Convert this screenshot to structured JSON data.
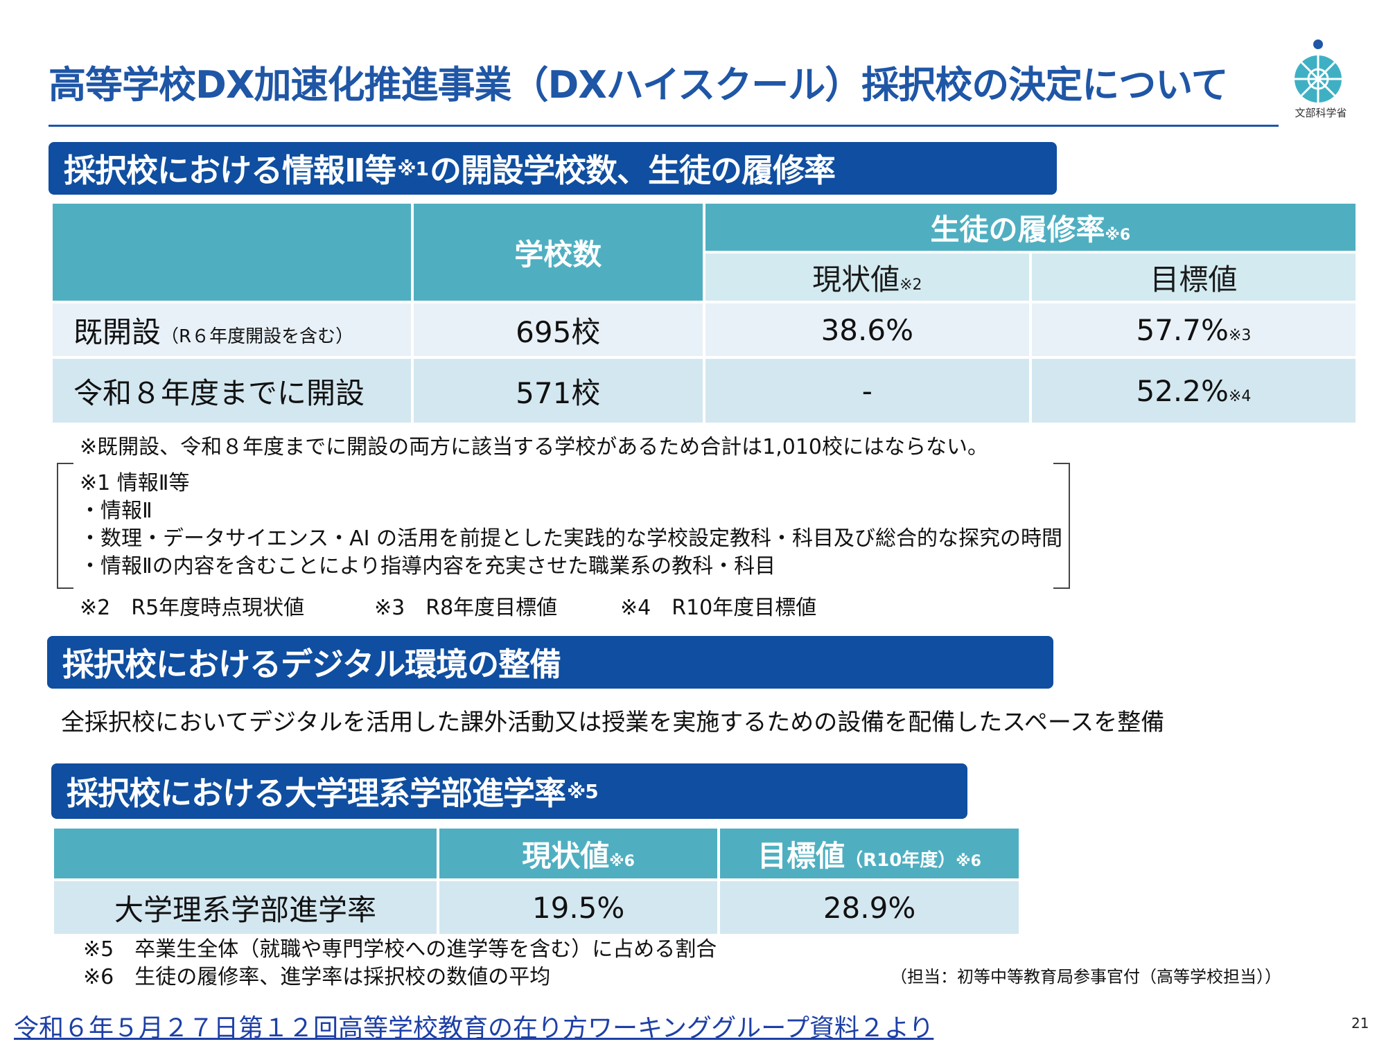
{
  "title": "高等学校DX加速化推進事業（DXハイスクール）採択校の決定について",
  "logo": {
    "text": "文部科学省",
    "color": "#3fb0c4"
  },
  "section1": {
    "heading_main": "採択校における情報Ⅱ等",
    "heading_note": "※1",
    "heading_rest": "の開設学校数、生徒の履修率",
    "table": {
      "col_schools": "学校数",
      "col_rate": "生徒の履修率",
      "col_rate_note": "※6",
      "col_current": "現状値",
      "col_current_note": "※2",
      "col_target": "目標値",
      "rows": [
        {
          "label": "既開設",
          "label_paren": "（R６年度開設を含む）",
          "schools": "695校",
          "current": "38.6%",
          "target": "57.7%",
          "target_note": "※3"
        },
        {
          "label": "令和８年度までに開設",
          "label_paren": "",
          "schools": "571校",
          "current": "-",
          "target": "52.2%",
          "target_note": "※4"
        }
      ]
    },
    "note_total": "※既開設、令和８年度までに開設の両方に該当する学校があるため合計は1,010校にはならない。",
    "bracket_lines": [
      "※1 情報Ⅱ等",
      "・情報Ⅱ",
      "・数理・データサイエンス・AI の活用を前提とした実践的な学校設定教科・科目及び総合的な探究の時間",
      "・情報Ⅱの内容を含むことにより指導内容を充実させた職業系の教科・科目"
    ],
    "footnotes": [
      "※2　R5年度時点現状値",
      "※3　R8年度目標値",
      "※4　R10年度目標値"
    ]
  },
  "section2": {
    "heading": "採択校におけるデジタル環境の整備",
    "body": "全採択校においてデジタルを活用した課外活動又は授業を実施するための設備を配備したスペースを整備"
  },
  "section3": {
    "heading_main": "採択校における大学理系学部進学率",
    "heading_note": "※5",
    "table": {
      "col_current": "現状値",
      "col_current_note": "※6",
      "col_target": "目標値",
      "col_target_paren": "（R10年度）",
      "col_target_note": "※6",
      "row_label": "大学理系学部進学率",
      "current": "19.5%",
      "target": "28.9%"
    },
    "footnotes": [
      "※5　卒業生全体（就職や専門学校への進学等を含む）に占める割合",
      "※6　生徒の履修率、進学率は採択校の数値の平均"
    ]
  },
  "tanto": "（担当：初等中等教育局参事官付（高等学校担当））",
  "footer_link": "令和６年５月２７日第１２回高等学校教育の在り方ワーキンググループ資料２より",
  "page_number": "21"
}
